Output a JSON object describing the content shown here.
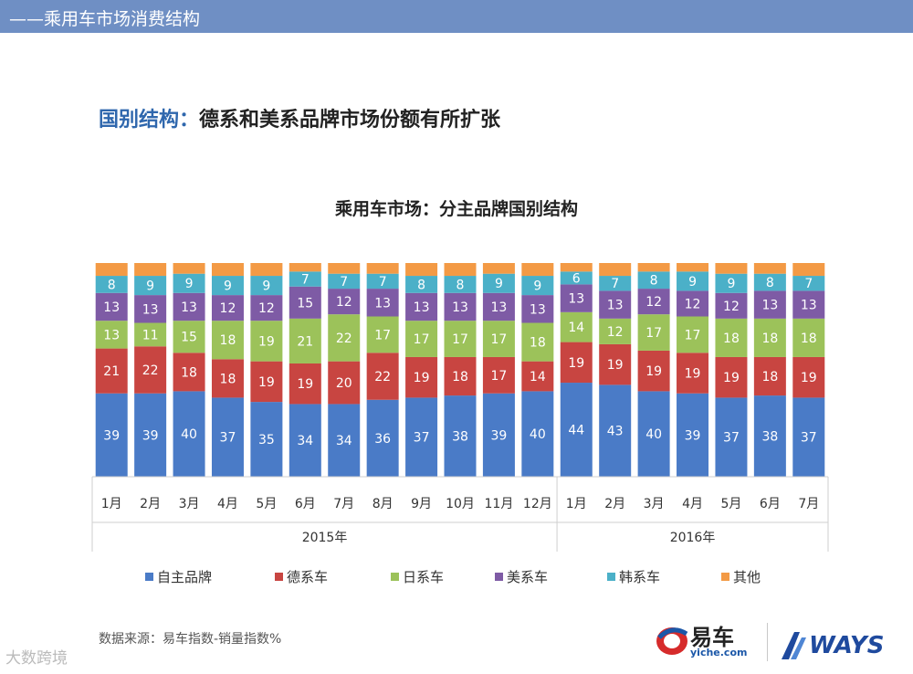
{
  "header": {
    "title": "——乘用车市场消费结构"
  },
  "headline": {
    "key": "国别结构：",
    "text": "德系和美系品牌市场份额有所扩张"
  },
  "footer": {
    "source": "数据来源：易车指数-销量指数%",
    "watermark": "大数跨境"
  },
  "logos": {
    "yiche": "易车",
    "yiche_sub": "yiche.com",
    "ways": "WAYS"
  },
  "chart_data": {
    "type": "bar",
    "stacked": true,
    "title": "乘用车市场：分主品牌国别结构",
    "categories": [
      "1月",
      "2月",
      "3月",
      "4月",
      "5月",
      "6月",
      "7月",
      "8月",
      "9月",
      "10月",
      "11月",
      "12月",
      "1月",
      "2月",
      "3月",
      "4月",
      "5月",
      "6月",
      "7月"
    ],
    "groups": [
      {
        "label": "2015年",
        "count": 12
      },
      {
        "label": "2016年",
        "count": 7
      }
    ],
    "series": [
      {
        "name": "自主品牌",
        "color": "#4a7bc7",
        "values": [
          39,
          39,
          40,
          37,
          35,
          34,
          34,
          36,
          37,
          38,
          39,
          40,
          44,
          43,
          40,
          39,
          37,
          38,
          37
        ]
      },
      {
        "name": "德系车",
        "color": "#c84541",
        "values": [
          21,
          22,
          18,
          18,
          19,
          19,
          20,
          22,
          19,
          18,
          17,
          14,
          19,
          19,
          19,
          19,
          19,
          18,
          19
        ]
      },
      {
        "name": "日系车",
        "color": "#9cc25a",
        "values": [
          13,
          11,
          15,
          18,
          19,
          21,
          22,
          17,
          17,
          17,
          17,
          18,
          14,
          12,
          17,
          17,
          18,
          18,
          18
        ]
      },
      {
        "name": "美系车",
        "color": "#7e5ba5",
        "values": [
          13,
          13,
          13,
          12,
          12,
          15,
          12,
          13,
          13,
          13,
          13,
          13,
          13,
          13,
          12,
          12,
          12,
          13,
          13
        ]
      },
      {
        "name": "韩系车",
        "color": "#4bb0c8",
        "values": [
          8,
          9,
          9,
          9,
          9,
          7,
          7,
          7,
          8,
          8,
          9,
          9,
          6,
          7,
          8,
          9,
          9,
          8,
          7
        ]
      },
      {
        "name": "其他",
        "color": "#f39a45",
        "values": [
          6,
          6,
          5,
          6,
          6,
          4,
          5,
          5,
          6,
          6,
          5,
          6,
          4,
          6,
          4,
          4,
          5,
          5,
          6
        ]
      }
    ],
    "ylim": [
      0,
      100
    ],
    "legend": "bottom",
    "grid": false
  }
}
